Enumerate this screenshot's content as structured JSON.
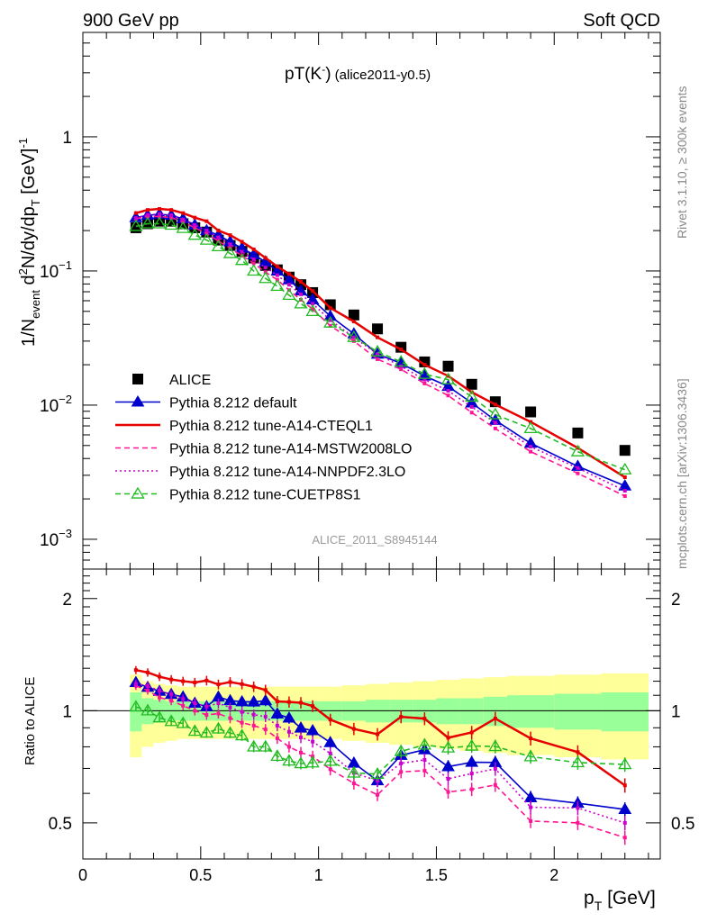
{
  "header": {
    "left": "900 GeV pp",
    "right": "Soft QCD"
  },
  "side_labels": {
    "rivet": "Rivet 3.1.10, ≥ 300k events",
    "mcplots": "mcplots.cern.ch [arXiv:1306.3436]"
  },
  "watermark": "ALICE_2011_S8945144",
  "plot_title": {
    "main": "pT(K",
    "sup": "-",
    "close": ")",
    "sub": " (alice2011-y0.5)"
  },
  "ylabel_top": {
    "p1": "1/N",
    "sub1": "event",
    "p2": " d",
    "sup2": "2",
    "p3": "N/dy/dp",
    "sub3": "T",
    "p4": " [GeV]",
    "sup4": "-1"
  },
  "ylabel_bottom": "Ratio to ALICE",
  "xlabel": {
    "p1": "p",
    "sub": "T",
    "p2": " [GeV]"
  },
  "top_ticks": [
    {
      "v": 1,
      "label": "1",
      "exp": ""
    },
    {
      "v": 0.1,
      "label": "10",
      "exp": "−1"
    },
    {
      "v": 0.01,
      "label": "10",
      "exp": "−2"
    },
    {
      "v": 0.001,
      "label": "10",
      "exp": "−3"
    }
  ],
  "x_ticks": [
    "0",
    "0.5",
    "1",
    "1.5",
    "2"
  ],
  "ratio_ticks": [
    "2",
    "1",
    "0.5"
  ],
  "chart_data": {
    "type": "line",
    "x_range": [
      0,
      2.45
    ],
    "y_range_top": [
      0.0006,
      6
    ],
    "y_scale_top": "log",
    "y_range_ratio": [
      0.4,
      2.4
    ],
    "y_scale_ratio": "log",
    "x": [
      0.225,
      0.275,
      0.325,
      0.375,
      0.425,
      0.475,
      0.525,
      0.575,
      0.625,
      0.675,
      0.725,
      0.775,
      0.825,
      0.875,
      0.925,
      0.975,
      1.05,
      1.15,
      1.25,
      1.35,
      1.45,
      1.55,
      1.65,
      1.75,
      1.9,
      2.1,
      2.3
    ],
    "x_bins": [
      0.2,
      0.25,
      0.3,
      0.35,
      0.4,
      0.45,
      0.5,
      0.55,
      0.6,
      0.65,
      0.7,
      0.75,
      0.8,
      0.85,
      0.9,
      0.95,
      1.0,
      1.1,
      1.2,
      1.3,
      1.4,
      1.5,
      1.6,
      1.7,
      1.8,
      2.0,
      2.2,
      2.4
    ],
    "band_inner": [
      0.12,
      0.08,
      0.07,
      0.06,
      0.06,
      0.06,
      0.06,
      0.06,
      0.06,
      0.06,
      0.06,
      0.06,
      0.06,
      0.06,
      0.06,
      0.06,
      0.06,
      0.06,
      0.07,
      0.07,
      0.07,
      0.08,
      0.08,
      0.09,
      0.1,
      0.11,
      0.12
    ],
    "band_outer": [
      0.25,
      0.2,
      0.18,
      0.17,
      0.16,
      0.16,
      0.16,
      0.16,
      0.16,
      0.16,
      0.16,
      0.16,
      0.16,
      0.16,
      0.16,
      0.16,
      0.16,
      0.17,
      0.18,
      0.19,
      0.2,
      0.21,
      0.22,
      0.23,
      0.24,
      0.25,
      0.26
    ],
    "series": [
      {
        "name": "ALICE",
        "color": "#000000",
        "style": "data",
        "values": [
          0.21,
          0.225,
          0.235,
          0.235,
          0.225,
          0.21,
          0.195,
          0.17,
          0.155,
          0.14,
          0.125,
          0.11,
          0.102,
          0.09,
          0.079,
          0.069,
          0.056,
          0.047,
          0.037,
          0.027,
          0.021,
          0.0195,
          0.0143,
          0.0106,
          0.0089,
          0.0062,
          0.0046
        ]
      },
      {
        "name": "Pythia 8.212 default",
        "color": "#0000cc",
        "style": "solid-triangle",
        "values": [
          0.25,
          0.26,
          0.265,
          0.26,
          0.245,
          0.22,
          0.2,
          0.185,
          0.165,
          0.148,
          0.132,
          0.117,
          0.1,
          0.086,
          0.071,
          0.061,
          0.046,
          0.034,
          0.024,
          0.0205,
          0.0165,
          0.0138,
          0.0104,
          0.0077,
          0.0052,
          0.0035,
          0.0025
        ]
      },
      {
        "name": "Pythia 8.212 tune-A14-CTEQL1",
        "color": "#e60000",
        "style": "solid",
        "values": [
          0.27,
          0.285,
          0.29,
          0.285,
          0.27,
          0.25,
          0.235,
          0.2,
          0.185,
          0.165,
          0.145,
          0.125,
          0.108,
          0.095,
          0.083,
          0.071,
          0.053,
          0.042,
          0.032,
          0.026,
          0.02,
          0.0165,
          0.0125,
          0.0101,
          0.0075,
          0.0048,
          0.0029
        ]
      },
      {
        "name": "Pythia 8.212 tune-A14-MSTW2008LO",
        "color": "#ff1493",
        "style": "dashed",
        "values": [
          0.245,
          0.255,
          0.255,
          0.25,
          0.232,
          0.21,
          0.19,
          0.167,
          0.148,
          0.13,
          0.114,
          0.098,
          0.086,
          0.072,
          0.061,
          0.052,
          0.039,
          0.03,
          0.022,
          0.0185,
          0.0145,
          0.0118,
          0.0088,
          0.0067,
          0.0045,
          0.0031,
          0.0021
        ]
      },
      {
        "name": "Pythia 8.212 tune-A14-NNPDF2.3LO",
        "color": "#cc00cc",
        "style": "dotted",
        "values": [
          0.248,
          0.262,
          0.266,
          0.26,
          0.242,
          0.22,
          0.2,
          0.178,
          0.158,
          0.139,
          0.122,
          0.106,
          0.093,
          0.079,
          0.067,
          0.057,
          0.043,
          0.032,
          0.024,
          0.0195,
          0.0155,
          0.0128,
          0.0097,
          0.0074,
          0.0049,
          0.0034,
          0.0023
        ]
      },
      {
        "name": "Pythia 8.212 tune-CUETP8S1",
        "color": "#22bb22",
        "style": "dashed-open-triangle",
        "values": [
          0.215,
          0.225,
          0.225,
          0.22,
          0.208,
          0.185,
          0.17,
          0.152,
          0.135,
          0.12,
          0.1,
          0.088,
          0.077,
          0.066,
          0.057,
          0.05,
          0.041,
          0.032,
          0.025,
          0.021,
          0.017,
          0.0155,
          0.0115,
          0.0085,
          0.0067,
          0.0045,
          0.0033
        ]
      }
    ]
  }
}
